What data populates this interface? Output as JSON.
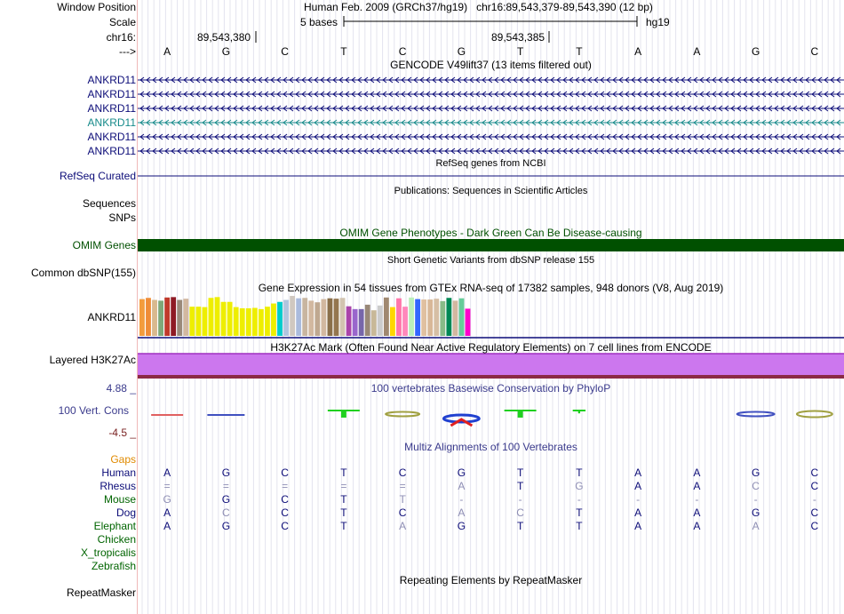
{
  "header": {
    "window_position_label": "Window Position",
    "window_position": "Human Feb. 2009 (GRCh37/hg19)   chr16:89,543,379-89,543,390 (12 bp)",
    "scale_label": "Scale",
    "scale_value": "5 bases",
    "scale_db": "hg19",
    "chrom_label": "chr16:",
    "pos1": "89,543,380",
    "pos2": "89,543,385",
    "strand_label": "--->"
  },
  "bases": [
    "A",
    "G",
    "C",
    "T",
    "C",
    "G",
    "T",
    "T",
    "A",
    "A",
    "G",
    "C"
  ],
  "tracks": {
    "gencode": {
      "title": "GENCODE V49lift37 (13 items filtered out)",
      "items": [
        {
          "label": "ANKRD11",
          "color": "#0c0c78"
        },
        {
          "label": "ANKRD11",
          "color": "#0c0c78"
        },
        {
          "label": "ANKRD11",
          "color": "#0c0c78"
        },
        {
          "label": "ANKRD11",
          "color": "#168a8a"
        },
        {
          "label": "ANKRD11",
          "color": "#0c0c78"
        },
        {
          "label": "ANKRD11",
          "color": "#0c0c78"
        }
      ]
    },
    "refseq": {
      "label": "RefSeq Curated",
      "title": "RefSeq genes from NCBI",
      "color": "#0c0c78"
    },
    "publications": {
      "title": "Publications: Sequences in Scientific Articles"
    },
    "sequences": {
      "label": "Sequences"
    },
    "snps": {
      "label": "SNPs"
    },
    "omim": {
      "label": "OMIM Genes",
      "title": "OMIM Gene Phenotypes - Dark Green Can Be Disease-causing",
      "color": "#005000"
    },
    "dbsnp": {
      "label": "Common dbSNP(155)",
      "title": "Short Genetic Variants from dbSNP release 155"
    },
    "gtex": {
      "label": "ANKRD11",
      "title": "Gene Expression in 54 tissues from GTEx RNA-seq of 17382 samples, 948 donors (V8, Aug 2019)",
      "bars": [
        {
          "v": 0.92,
          "c": "#f39c3c"
        },
        {
          "v": 0.95,
          "c": "#ef8c37"
        },
        {
          "v": 0.9,
          "c": "#d9b98e"
        },
        {
          "v": 0.88,
          "c": "#7fa879"
        },
        {
          "v": 0.96,
          "c": "#c0392b"
        },
        {
          "v": 0.97,
          "c": "#8e1a25"
        },
        {
          "v": 0.9,
          "c": "#9a8a7a"
        },
        {
          "v": 0.93,
          "c": "#d2b8a0"
        },
        {
          "v": 0.73,
          "c": "#eeee00"
        },
        {
          "v": 0.73,
          "c": "#eeee00"
        },
        {
          "v": 0.72,
          "c": "#eeee00"
        },
        {
          "v": 0.95,
          "c": "#eeee00"
        },
        {
          "v": 0.97,
          "c": "#eeee00"
        },
        {
          "v": 0.85,
          "c": "#eeee00"
        },
        {
          "v": 0.85,
          "c": "#eeee00"
        },
        {
          "v": 0.72,
          "c": "#eeee00"
        },
        {
          "v": 0.69,
          "c": "#eeee00"
        },
        {
          "v": 0.69,
          "c": "#eeee00"
        },
        {
          "v": 0.7,
          "c": "#eeee00"
        },
        {
          "v": 0.67,
          "c": "#eeee00"
        },
        {
          "v": 0.73,
          "c": "#eeee00"
        },
        {
          "v": 0.81,
          "c": "#eeee00"
        },
        {
          "v": 0.85,
          "c": "#00cccc"
        },
        {
          "v": 0.9,
          "c": "#b0c4de"
        },
        {
          "v": 1.0,
          "c": "#d0c8c0"
        },
        {
          "v": 0.94,
          "c": "#aabbdd"
        },
        {
          "v": 0.95,
          "c": "#c8b5a0"
        },
        {
          "v": 0.88,
          "c": "#d2b8a0"
        },
        {
          "v": 0.84,
          "c": "#bfa890"
        },
        {
          "v": 0.92,
          "c": "#d2b8a0"
        },
        {
          "v": 0.94,
          "c": "#8a6f4a"
        },
        {
          "v": 0.93,
          "c": "#94764f"
        },
        {
          "v": 0.95,
          "c": "#d2c4b0"
        },
        {
          "v": 0.74,
          "c": "#aa44aa"
        },
        {
          "v": 0.67,
          "c": "#9966cc"
        },
        {
          "v": 0.67,
          "c": "#7766aa"
        },
        {
          "v": 0.78,
          "c": "#998877"
        },
        {
          "v": 0.64,
          "c": "#c8b898"
        },
        {
          "v": 0.76,
          "c": "#cccccc"
        },
        {
          "v": 0.96,
          "c": "#a08870"
        },
        {
          "v": 0.72,
          "c": "#ffd700"
        },
        {
          "v": 0.94,
          "c": "#ff77aa"
        },
        {
          "v": 0.73,
          "c": "#ff88bb"
        },
        {
          "v": 0.96,
          "c": "#bbeebb"
        },
        {
          "v": 0.92,
          "c": "#3366ff"
        },
        {
          "v": 0.91,
          "c": "#e0c0a0"
        },
        {
          "v": 0.91,
          "c": "#d8b898"
        },
        {
          "v": 0.93,
          "c": "#d6bfa5"
        },
        {
          "v": 0.87,
          "c": "#88bb88"
        },
        {
          "v": 0.95,
          "c": "#008855"
        },
        {
          "v": 0.88,
          "c": "#d2b8a0"
        },
        {
          "v": 0.94,
          "c": "#66cc99"
        },
        {
          "v": 0.68,
          "c": "#ff00cc"
        }
      ]
    },
    "h3k27ac": {
      "label": "Layered H3K27Ac",
      "title": "H3K27Ac Mark (Often Found Near Active Regulatory Elements) on 7 cell lines from ENCODE",
      "color": "#cc77ee"
    },
    "phylop": {
      "label": "100 Vert. Cons",
      "title": "100 vertebrates Basewise Conservation by PhyloP",
      "y_max": "4.88 _",
      "y_min": "-4.5 _"
    },
    "multiz": {
      "title": "Multiz Alignments of 100 Vertebrates",
      "gaps_label": "Gaps",
      "species": [
        {
          "name": "Human",
          "color": "#0c0c78",
          "bases": [
            "A",
            "G",
            "C",
            "T",
            "C",
            "G",
            "T",
            "T",
            "A",
            "A",
            "G",
            "C"
          ],
          "dim": [
            0,
            0,
            0,
            0,
            0,
            0,
            0,
            0,
            0,
            0,
            0,
            0
          ]
        },
        {
          "name": "Rhesus",
          "color": "#0c0c78",
          "bases": [
            "=",
            "=",
            "=",
            "=",
            "=",
            "A",
            "T",
            "G",
            "A",
            "A",
            "C",
            "C"
          ],
          "dim": [
            1,
            1,
            1,
            1,
            1,
            1,
            0,
            1,
            0,
            0,
            1,
            0
          ]
        },
        {
          "name": "Mouse",
          "color": "#006400",
          "bases": [
            "G",
            "G",
            "C",
            "T",
            "T",
            "-",
            "-",
            "-",
            "-",
            "-",
            "-",
            "-"
          ],
          "dim": [
            1,
            0,
            0,
            0,
            1,
            1,
            1,
            1,
            1,
            1,
            1,
            1
          ]
        },
        {
          "name": "Dog",
          "color": "#0c0c78",
          "bases": [
            "A",
            "C",
            "C",
            "T",
            "C",
            "A",
            "C",
            "T",
            "A",
            "A",
            "G",
            "C"
          ],
          "dim": [
            0,
            1,
            0,
            0,
            0,
            1,
            1,
            0,
            0,
            0,
            0,
            0
          ]
        },
        {
          "name": "Elephant",
          "color": "#006400",
          "bases": [
            "A",
            "G",
            "C",
            "T",
            "A",
            "G",
            "T",
            "T",
            "A",
            "A",
            "A",
            "C"
          ],
          "dim": [
            0,
            0,
            0,
            0,
            1,
            0,
            0,
            0,
            0,
            0,
            1,
            0
          ]
        },
        {
          "name": "Chicken",
          "color": "#006400",
          "bases": [],
          "dim": []
        },
        {
          "name": "X_tropicalis",
          "color": "#006400",
          "bases": [],
          "dim": []
        },
        {
          "name": "Zebrafish",
          "color": "#006400",
          "bases": [],
          "dim": []
        }
      ]
    },
    "repeatmasker": {
      "label": "RepeatMasker",
      "title": "Repeating Elements by RepeatMasker"
    }
  }
}
